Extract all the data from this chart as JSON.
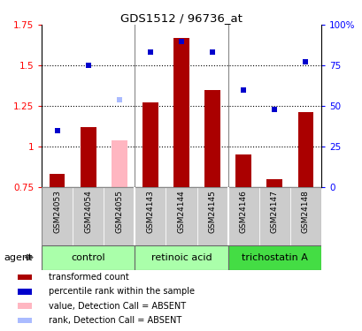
{
  "title": "GDS1512 / 96736_at",
  "samples": [
    "GSM24053",
    "GSM24054",
    "GSM24055",
    "GSM24143",
    "GSM24144",
    "GSM24145",
    "GSM24146",
    "GSM24147",
    "GSM24148"
  ],
  "bar_values": [
    0.83,
    1.12,
    null,
    1.27,
    1.67,
    1.35,
    0.95,
    0.8,
    1.21
  ],
  "bar_absent": [
    null,
    null,
    1.04,
    null,
    null,
    null,
    null,
    null,
    null
  ],
  "rank_values": [
    1.1,
    1.5,
    null,
    1.58,
    1.65,
    1.58,
    1.35,
    1.23,
    1.52
  ],
  "rank_absent": [
    null,
    null,
    1.29,
    null,
    null,
    null,
    null,
    null,
    null
  ],
  "bar_color": "#AA0000",
  "bar_absent_color": "#FFB6C1",
  "rank_color": "#0000CC",
  "rank_absent_color": "#AABBFF",
  "ylim_left": [
    0.75,
    1.75
  ],
  "ylim_right": [
    0,
    100
  ],
  "yticks_left": [
    0.75,
    1.0,
    1.25,
    1.5,
    1.75
  ],
  "ytick_labels_left": [
    "0.75",
    "1",
    "1.25",
    "1.5",
    "1.75"
  ],
  "ytick_labels_right": [
    "0",
    "25",
    "50",
    "75",
    "100%"
  ],
  "groups": [
    {
      "label": "control",
      "start": 0,
      "end": 2,
      "color": "#AAFFAA"
    },
    {
      "label": "retinoic acid",
      "start": 3,
      "end": 5,
      "color": "#AAFFAA"
    },
    {
      "label": "trichostatin A",
      "start": 6,
      "end": 8,
      "color": "#44DD44"
    }
  ],
  "agent_label": "agent",
  "dotted_lines": [
    1.0,
    1.25,
    1.5
  ],
  "bar_bottom": 0.75,
  "legend_items": [
    {
      "label": "transformed count",
      "color": "#AA0000"
    },
    {
      "label": "percentile rank within the sample",
      "color": "#0000CC"
    },
    {
      "label": "value, Detection Call = ABSENT",
      "color": "#FFB6C1"
    },
    {
      "label": "rank, Detection Call = ABSENT",
      "color": "#AABBFF"
    }
  ],
  "sample_box_color": "#CCCCCC",
  "group_border_color": "#666666",
  "marker_size": 5
}
